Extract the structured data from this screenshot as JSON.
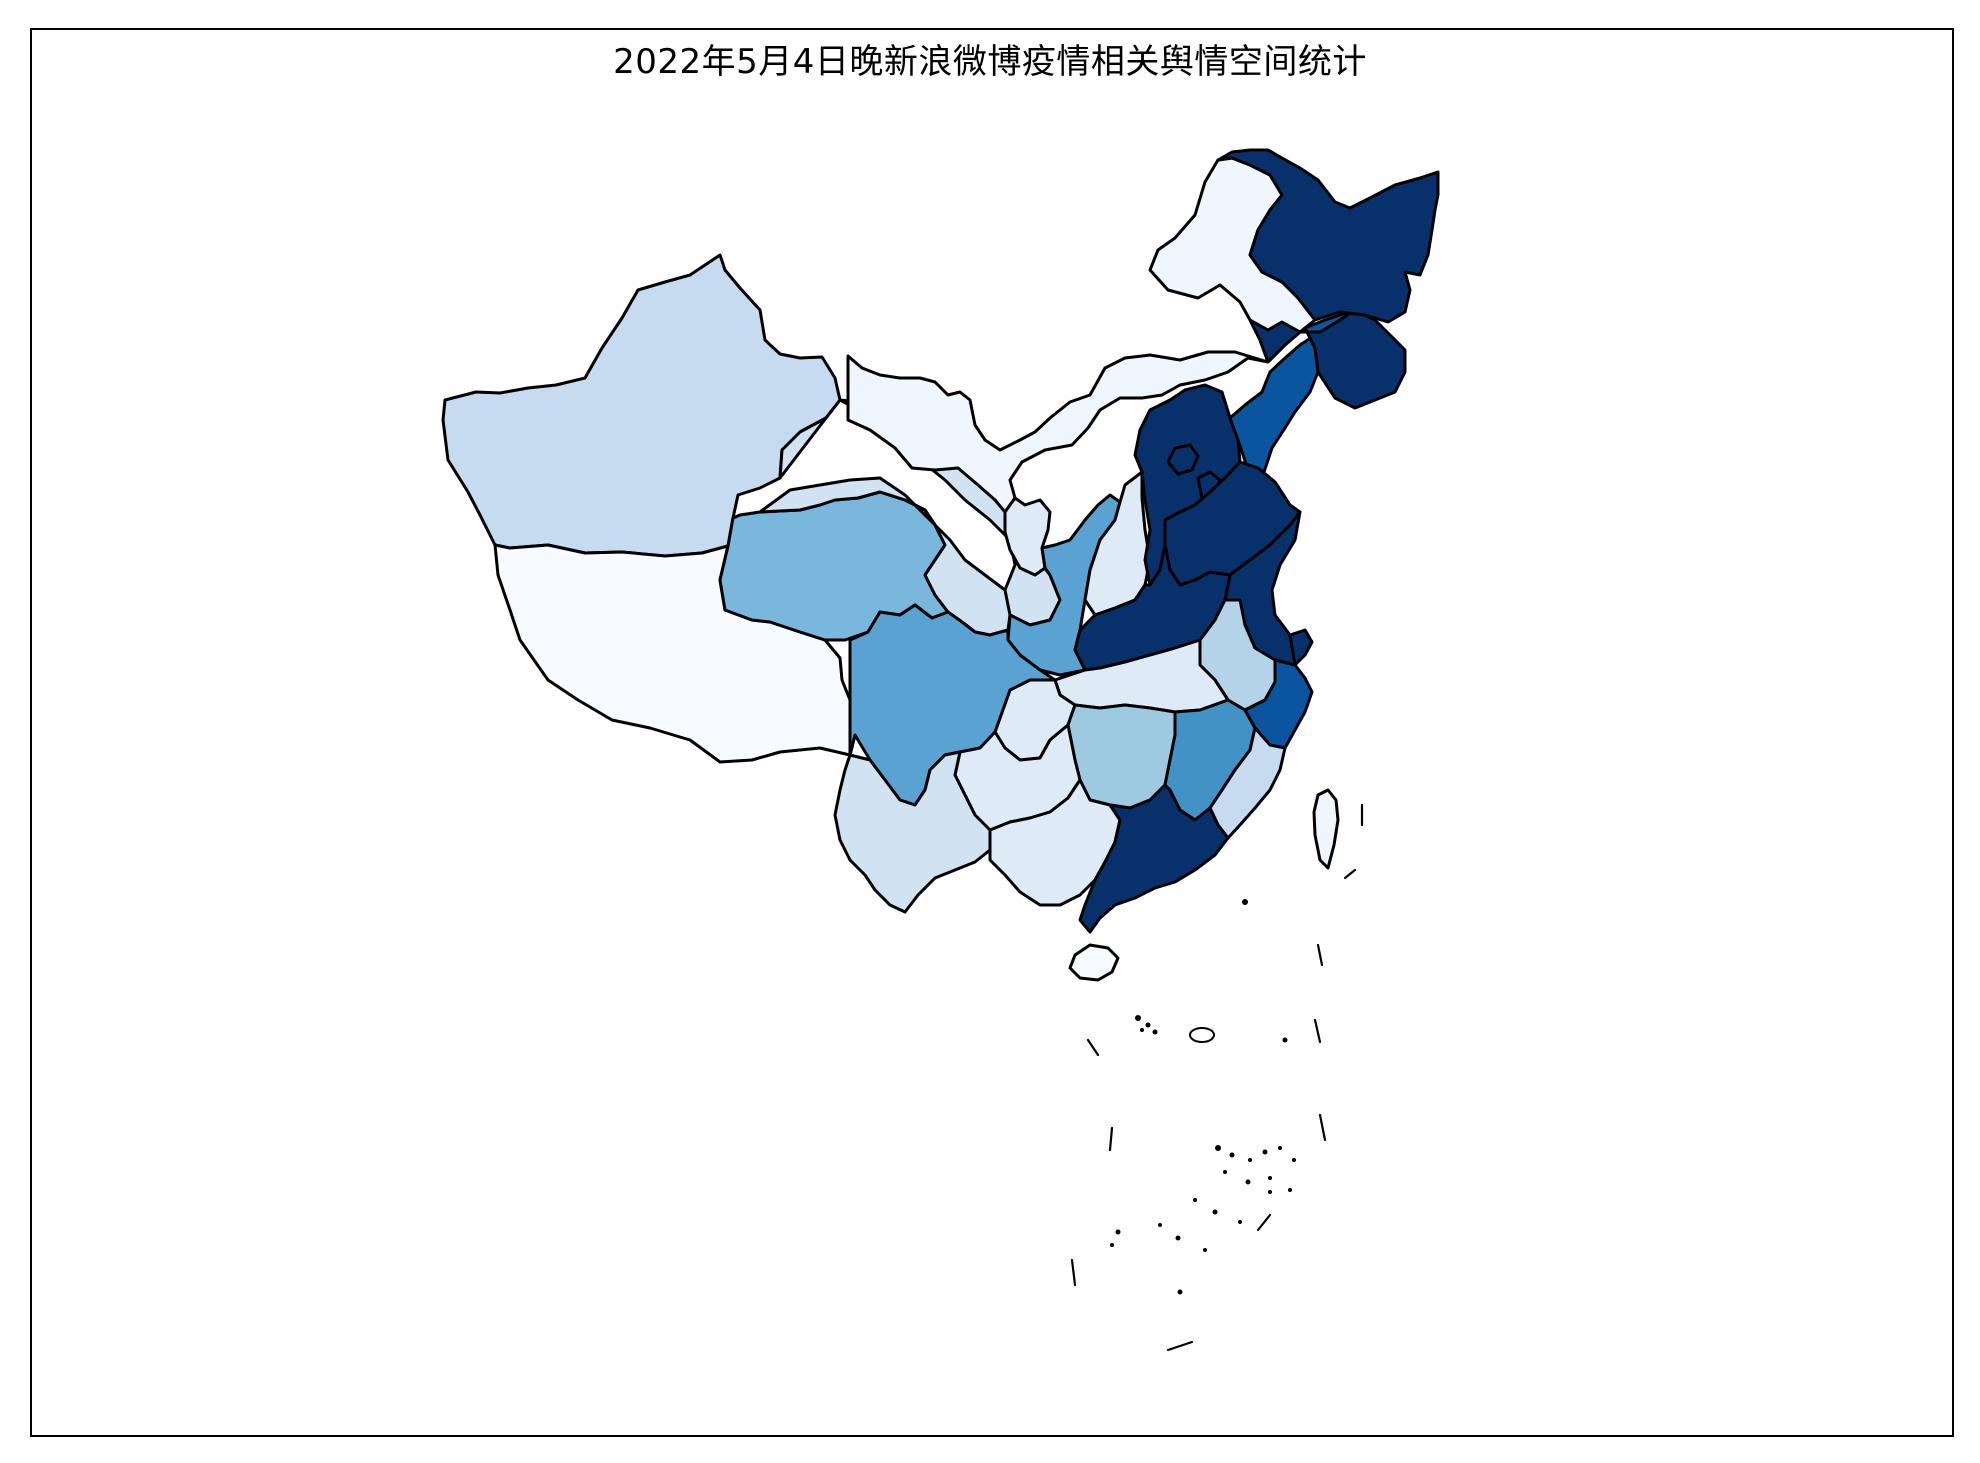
{
  "title": "2022年5月4日晚新浪微博疫情相关舆情空间统计",
  "palette": {
    "level0": "#f7fbff",
    "level1": "#eff6fd",
    "level2": "#deebf7",
    "level3": "#d1e2f3",
    "level4": "#c6dbef",
    "level5": "#b4d3e9",
    "level6": "#9ecae1",
    "level7": "#7ab7dc",
    "level8": "#6baed6",
    "level9": "#5aa2d2",
    "level10": "#4292c6",
    "level11": "#2171b5",
    "level12": "#0b559f",
    "level13": "#08306b",
    "border": "#000000",
    "background": "#ffffff"
  },
  "chart_data": {
    "type": "choropleth",
    "colormap": "Blues",
    "title": "2022年5月4日晚新浪微博疫情相关舆情空间统计",
    "legend": "none",
    "regions": [
      {
        "region": "Heilongjiang",
        "level": 13
      },
      {
        "region": "Jilin",
        "level": 13
      },
      {
        "region": "Liaoning",
        "level": 12
      },
      {
        "region": "Inner Mongolia",
        "level": 1
      },
      {
        "region": "Beijing",
        "level": 13
      },
      {
        "region": "Tianjin",
        "level": 13
      },
      {
        "region": "Hebei",
        "level": 13
      },
      {
        "region": "Shandong",
        "level": 13
      },
      {
        "region": "Henan",
        "level": 13
      },
      {
        "region": "Jiangsu",
        "level": 13
      },
      {
        "region": "Shanghai",
        "level": 13
      },
      {
        "region": "Zhejiang",
        "level": 12
      },
      {
        "region": "Guangdong",
        "level": 13
      },
      {
        "region": "Jiangxi",
        "level": 10
      },
      {
        "region": "Shaanxi",
        "level": 9
      },
      {
        "region": "Sichuan",
        "level": 9
      },
      {
        "region": "Chongqing",
        "level": 2
      },
      {
        "region": "Qinghai",
        "level": 7
      },
      {
        "region": "Hunan",
        "level": 6
      },
      {
        "region": "Anhui",
        "level": 5
      },
      {
        "region": "Fujian",
        "level": 4
      },
      {
        "region": "Xinjiang",
        "level": 4
      },
      {
        "region": "Shanxi",
        "level": 2
      },
      {
        "region": "Hubei",
        "level": 2
      },
      {
        "region": "Yunnan",
        "level": 3
      },
      {
        "region": "Gansu",
        "level": 3
      },
      {
        "region": "Guizhou",
        "level": 2
      },
      {
        "region": "Guangxi",
        "level": 2
      },
      {
        "region": "Ningxia",
        "level": 2
      },
      {
        "region": "Taiwan",
        "level": 1
      },
      {
        "region": "Hainan",
        "level": 0
      },
      {
        "region": "Tibet",
        "level": 0
      }
    ]
  }
}
